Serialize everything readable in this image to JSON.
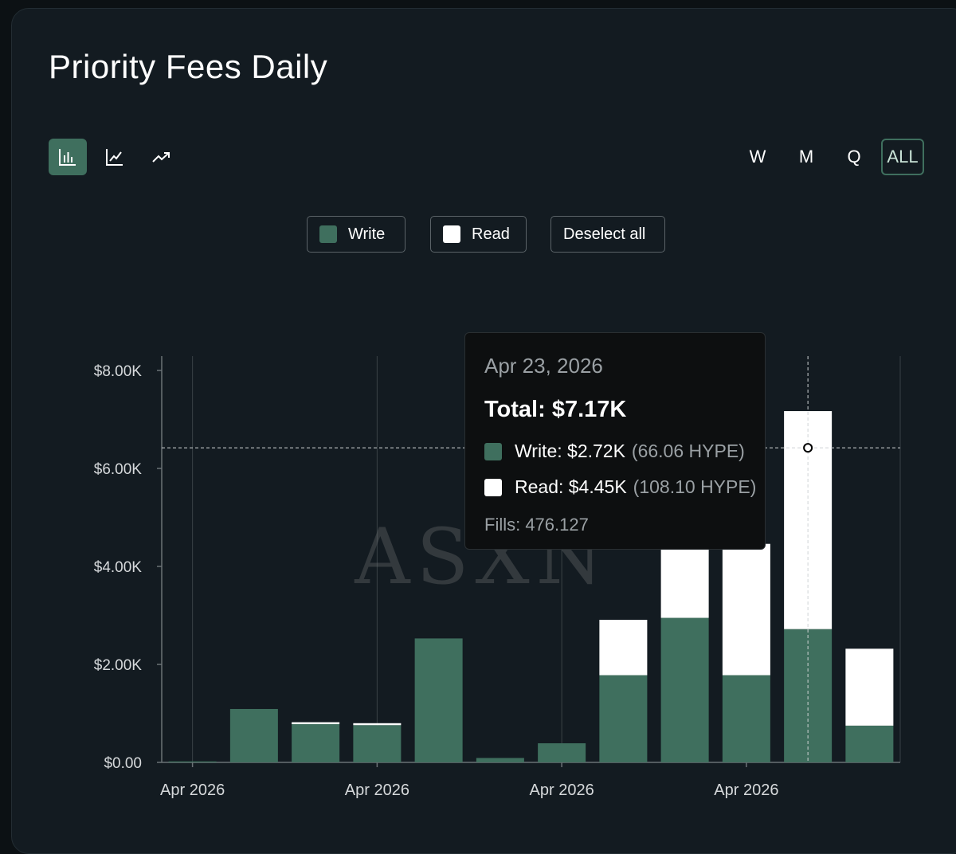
{
  "header": {
    "title": "Priority Fees Daily"
  },
  "chart_type_buttons": [
    {
      "name": "bar-chart-icon",
      "active": true
    },
    {
      "name": "line-chart-icon",
      "active": false
    },
    {
      "name": "trend-chart-icon",
      "active": false
    }
  ],
  "range_buttons": [
    "W",
    "M",
    "Q",
    "ALL"
  ],
  "range_active": "ALL",
  "legend": {
    "write_label": "Write",
    "read_label": "Read",
    "deselect_label": "Deselect all",
    "write_color": "#3f6f5e",
    "read_color": "#ffffff"
  },
  "watermark": "ASXN",
  "chart_data": {
    "type": "bar",
    "stacked": true,
    "ylim": [
      0,
      8000
    ],
    "yticks": [
      0,
      2000,
      4000,
      6000,
      8000
    ],
    "ytick_labels": [
      "$0.00",
      "$2.00K",
      "$4.00K",
      "$6.00K",
      "$8.00K"
    ],
    "xtick_labels": [
      "Apr 2026",
      "Apr 2026",
      "Apr 2026",
      "Apr 2026"
    ],
    "xtick_bar_positions": [
      0,
      3,
      6,
      9
    ],
    "series": [
      {
        "name": "Write",
        "color": "#3f6f5e",
        "values": [
          20,
          1090,
          780,
          760,
          2530,
          90,
          390,
          1780,
          2950,
          1780,
          2720,
          750
        ]
      },
      {
        "name": "Read",
        "color": "#ffffff",
        "values": [
          0,
          0,
          40,
          40,
          0,
          0,
          0,
          1130,
          1560,
          2680,
          4450,
          1570
        ]
      }
    ],
    "highlight_index": 10,
    "crosshair_value": 6420
  },
  "tooltip": {
    "date": "Apr 23, 2026",
    "total": "Total: $7.17K",
    "write": "Write: $2.72K",
    "write_hype": "(66.06 HYPE)",
    "read": "Read: $4.45K",
    "read_hype": "(108.10 HYPE)",
    "fills": "Fills: 476.127"
  }
}
